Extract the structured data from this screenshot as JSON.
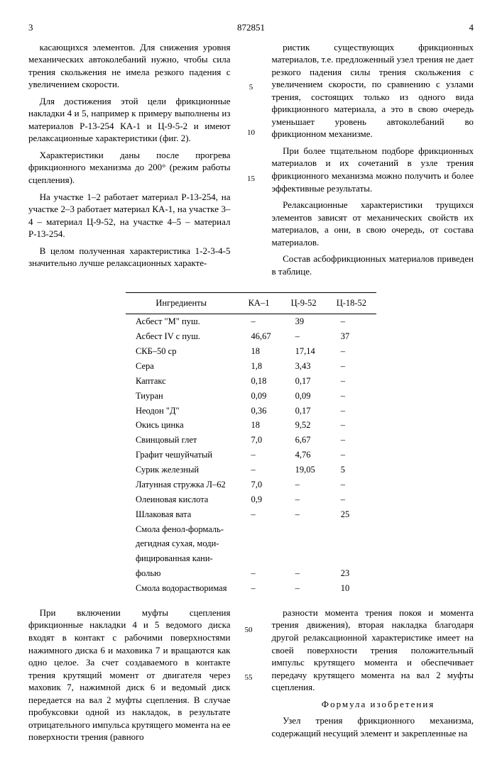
{
  "header": {
    "left_page": "3",
    "doc_number": "872851",
    "right_page": "4"
  },
  "left_col": {
    "p1": "касающихся элементов. Для снижения уровня механических автоколебаний нужно, чтобы сила трения скольжения не имела резкого падения с увеличением скорости.",
    "p2": "Для достижения этой цели фрикционные накладки 4 и 5, например к примеру выполнены из материалов Р-13-254 КА-1 и Ц-9-5-2 и имеют релаксационные характеристики (фиг. 2).",
    "p3": "Характеристики даны после прогрева фрикционного механизма до 200° (режим работы сцепления).",
    "p4": "На участке 1–2 работает материал Р-13-254, на участке 2–3 работает материал КА-1, на участке 3–4 – материал Ц-9-52, на участке 4–5 – материал Р-13-254.",
    "p5": "В целом полученная характеристика 1-2-3-4-5 значительно лучше релаксационных характе-"
  },
  "right_col": {
    "p1": "ристик существующих фрикционных материалов, т.е. предложенный узел трения не дает резкого падения силы трения скольжения с увеличением скорости, по сравнению с узлами трения, состоящих только из одного вида фрикционного материала, а это в свою очередь уменьшает уровень автоколебаний во фрикционном механизме.",
    "p2": "При более тщательном подборе фрикционных материалов и их сочетаний в узле трения фрикционного механизма можно получить и более эффективные результаты.",
    "p3": "Релаксационные характеристики трущихся элементов зависят от механических свойств их материалов, а они, в свою очередь, от состава материалов.",
    "p4": "Состав асбофрикционных материалов приведен в таблице."
  },
  "line_nums": {
    "n5": "5",
    "n10": "10",
    "n15": "15"
  },
  "table": {
    "headers": [
      "Ингредиенты",
      "КА–1",
      "Ц-9-52",
      "Ц-18-52"
    ],
    "rows": [
      [
        "Асбест \"М\" пуш.",
        "–",
        "39",
        "–"
      ],
      [
        "Асбест IV с пуш.",
        "46,67",
        "–",
        "37"
      ],
      [
        "СКБ–50 ср",
        "18",
        "17,14",
        "–"
      ],
      [
        "Сера",
        "1,8",
        "3,43",
        "–"
      ],
      [
        "Каптакс",
        "0,18",
        "0,17",
        "–"
      ],
      [
        "Тиуран",
        "0,09",
        "0,09",
        "–"
      ],
      [
        "Неодон \"Д\"",
        "0,36",
        "0,17",
        "–"
      ],
      [
        "Окись цинка",
        "18",
        "9,52",
        "–"
      ],
      [
        "Свинцовый глет",
        "7,0",
        "6,67",
        "–"
      ],
      [
        "Графит чешуйчатый",
        "–",
        "4,76",
        "–"
      ],
      [
        "Сурик железный",
        "–",
        "19,05",
        "5"
      ],
      [
        "Латунная стружка   Л–62",
        "7,0",
        "–",
        "–"
      ],
      [
        "Олеиновая кислота",
        "0,9",
        "–",
        "–"
      ],
      [
        "Шлаковая вата",
        "–",
        "–",
        "25"
      ],
      [
        "Смола фенол-формаль-",
        "",
        "",
        ""
      ],
      [
        "дегидная сухая, моди-",
        "",
        "",
        ""
      ],
      [
        "фицированная кани-",
        "",
        "",
        ""
      ],
      [
        "фолью",
        "–",
        "–",
        "23"
      ],
      [
        "Смола водорастворимая",
        "–",
        "–",
        "10"
      ]
    ]
  },
  "bottom_left": {
    "p1": "При включении муфты сцепления фрикционные накладки 4 и 5 ведомого диска входят в контакт с рабочими поверхностями нажимного диска 6 и маховика 7 и вращаются как одно целое. За счет создаваемого в контакте трения крутящий момент от двигателя через маховик 7, нажимной диск 6 и ведомый диск передается на вал 2 муфты сцепления. В случае пробуксовки одной из накладок, в результате отрицательного импульса крутящего момента на ее поверхности трения (равного"
  },
  "bottom_right": {
    "p1": "разности момента трения покоя и момента трения движения), вторая накладка благодаря другой релаксационной характеристике имеет на своей поверхности трения положительный импульс крутящего момента и обеспечивает передачу крутящего момента на вал 2 муфты сцепления.",
    "formula_title": "Формула изобретения",
    "p2": "Узел трения фрикционного механизма, содержащий несущий элемент и закрепленные на"
  },
  "bottom_nums": {
    "n50": "50",
    "n55": "55"
  }
}
